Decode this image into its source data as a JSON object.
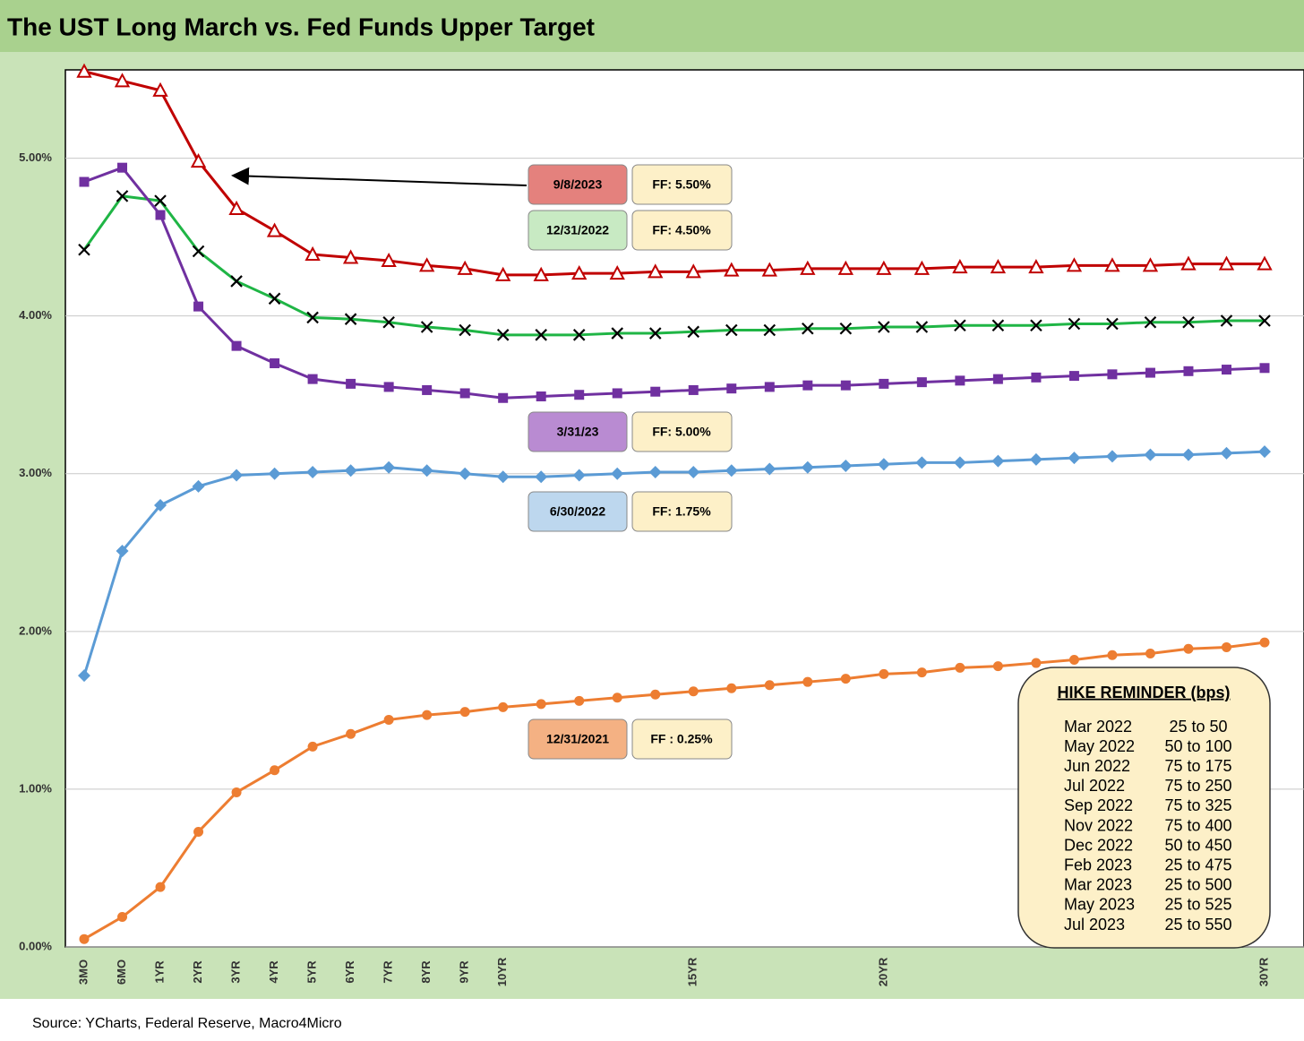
{
  "chart_data": {
    "type": "line",
    "title": "The UST Long March vs. Fed Funds Upper Target",
    "source": "Source: YCharts, Federal Reserve, Macro4Micro",
    "categories": [
      "3MO",
      "6MO",
      "1YR",
      "2YR",
      "3YR",
      "4YR",
      "5YR",
      "6YR",
      "7YR",
      "8YR",
      "9YR",
      "10YR",
      null,
      null,
      null,
      null,
      "15YR",
      null,
      null,
      null,
      null,
      "20YR",
      null,
      null,
      null,
      null,
      null,
      null,
      null,
      null,
      null,
      "30YR"
    ],
    "ylim": [
      0,
      5.56
    ],
    "yticks": [
      {
        "value": 0,
        "label": "0.00%"
      },
      {
        "value": 1,
        "label": "1.00%"
      },
      {
        "value": 2,
        "label": "2.00%"
      },
      {
        "value": 3,
        "label": "3.00%"
      },
      {
        "value": 4,
        "label": "4.00%"
      },
      {
        "value": 5,
        "label": "5.00%"
      }
    ],
    "grid": true,
    "series": [
      {
        "name": "9/8/2023",
        "ff_label": "FF: 5.50%",
        "color": "#c00000",
        "label_fill": "#e4817d",
        "marker": "triangle",
        "values": [
          5.55,
          5.49,
          5.43,
          4.98,
          4.68,
          4.54,
          4.39,
          4.37,
          4.35,
          4.32,
          4.3,
          4.26,
          4.26,
          4.27,
          4.27,
          4.28,
          4.28,
          4.29,
          4.29,
          4.3,
          4.3,
          4.3,
          4.3,
          4.31,
          4.31,
          4.31,
          4.32,
          4.32,
          4.32,
          4.33,
          4.33,
          4.33
        ]
      },
      {
        "name": "12/31/2022",
        "ff_label": "FF: 4.50%",
        "color": "#1fb545",
        "label_fill": "#c8eac3",
        "marker": "x",
        "values": [
          4.42,
          4.76,
          4.73,
          4.41,
          4.22,
          4.11,
          3.99,
          3.98,
          3.96,
          3.93,
          3.91,
          3.88,
          3.88,
          3.88,
          3.89,
          3.89,
          3.9,
          3.91,
          3.91,
          3.92,
          3.92,
          3.93,
          3.93,
          3.94,
          3.94,
          3.94,
          3.95,
          3.95,
          3.96,
          3.96,
          3.97,
          3.97
        ]
      },
      {
        "name": "3/31/23",
        "ff_label": "FF: 5.00%",
        "color": "#7030a0",
        "label_fill": "#b98bd2",
        "marker": "square",
        "values": [
          4.85,
          4.94,
          4.64,
          4.06,
          3.81,
          3.7,
          3.6,
          3.57,
          3.55,
          3.53,
          3.51,
          3.48,
          3.49,
          3.5,
          3.51,
          3.52,
          3.53,
          3.54,
          3.55,
          3.56,
          3.56,
          3.57,
          3.58,
          3.59,
          3.6,
          3.61,
          3.62,
          3.63,
          3.64,
          3.65,
          3.66,
          3.67
        ]
      },
      {
        "name": "6/30/2022",
        "ff_label": "FF: 1.75%",
        "color": "#5b9bd5",
        "label_fill": "#bdd7ee",
        "marker": "diamond",
        "values": [
          1.72,
          2.51,
          2.8,
          2.92,
          2.99,
          3.0,
          3.01,
          3.02,
          3.04,
          3.02,
          3.0,
          2.98,
          2.98,
          2.99,
          3.0,
          3.01,
          3.01,
          3.02,
          3.03,
          3.04,
          3.05,
          3.06,
          3.07,
          3.07,
          3.08,
          3.09,
          3.1,
          3.11,
          3.12,
          3.12,
          3.13,
          3.14
        ]
      },
      {
        "name": "12/31/2021",
        "ff_label": "FF : 0.25%",
        "color": "#ed7d31",
        "label_fill": "#f4b183",
        "marker": "circle",
        "values": [
          0.05,
          0.19,
          0.38,
          0.73,
          0.98,
          1.12,
          1.27,
          1.35,
          1.44,
          1.47,
          1.49,
          1.52,
          1.54,
          1.56,
          1.58,
          1.6,
          1.62,
          1.64,
          1.66,
          1.68,
          1.7,
          1.73,
          1.74,
          1.77,
          1.78,
          1.8,
          1.82,
          1.85,
          1.86,
          1.89,
          1.9,
          1.93
        ]
      }
    ],
    "hike_reminder": {
      "title": "HIKE REMINDER (bps)",
      "rows": [
        [
          "Mar 2022",
          "25 to 50"
        ],
        [
          "May 2022",
          "50 to 100"
        ],
        [
          "Jun 2022",
          "75 to 175"
        ],
        [
          "Jul 2022",
          "75 to 250"
        ],
        [
          "Sep 2022",
          "75 to 325"
        ],
        [
          "Nov 2022",
          "75 to 400"
        ],
        [
          "Dec 2022",
          "50 to 450"
        ],
        [
          "Feb 2023",
          "25 to 475"
        ],
        [
          "Mar 2023",
          "25 to 500"
        ],
        [
          "May 2023",
          "25 to 525"
        ],
        [
          "Jul 2023",
          "25 to 550"
        ]
      ]
    }
  }
}
